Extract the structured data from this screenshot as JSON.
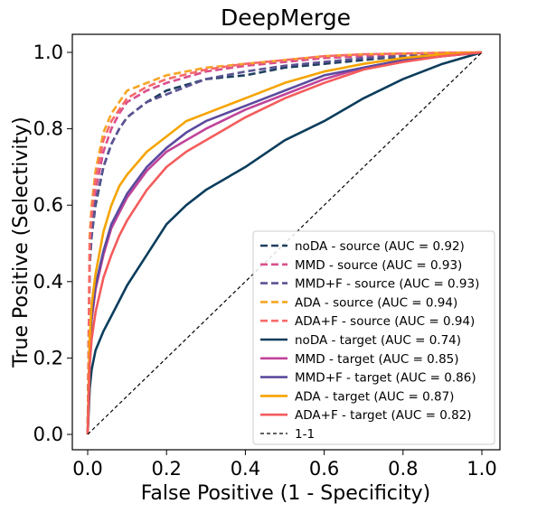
{
  "chart_data": {
    "type": "line",
    "title": "DeepMerge",
    "xlabel": "False Positive (1 - Specificity)",
    "ylabel": "True Positive (Selectivity)",
    "xlim": [
      0.0,
      1.0
    ],
    "ylim": [
      0.0,
      1.0
    ],
    "xticks": [
      "0.0",
      "0.2",
      "0.4",
      "0.6",
      "0.8",
      "1.0"
    ],
    "yticks": [
      "0.0",
      "0.2",
      "0.4",
      "0.6",
      "0.8",
      "1.0"
    ],
    "grid": false,
    "legend_position": "lower-right",
    "series": [
      {
        "name": "noDA - source (AUC = 0.92)",
        "color": "#1f3f5f",
        "dashed": true,
        "x": [
          0,
          0.005,
          0.01,
          0.02,
          0.04,
          0.06,
          0.08,
          0.1,
          0.15,
          0.2,
          0.3,
          0.4,
          0.5,
          0.6,
          0.7,
          0.8,
          0.9,
          1.0
        ],
        "y": [
          0,
          0.45,
          0.52,
          0.6,
          0.7,
          0.76,
          0.8,
          0.83,
          0.87,
          0.9,
          0.93,
          0.94,
          0.96,
          0.97,
          0.98,
          0.99,
          0.995,
          1.0
        ]
      },
      {
        "name": "MMD - source (AUC = 0.93)",
        "color": "#d94f8c",
        "dashed": true,
        "x": [
          0,
          0.005,
          0.01,
          0.02,
          0.04,
          0.06,
          0.08,
          0.1,
          0.15,
          0.2,
          0.3,
          0.4,
          0.5,
          0.6,
          0.7,
          0.8,
          0.9,
          1.0
        ],
        "y": [
          0,
          0.47,
          0.55,
          0.64,
          0.74,
          0.8,
          0.84,
          0.87,
          0.9,
          0.92,
          0.95,
          0.965,
          0.975,
          0.985,
          0.99,
          0.995,
          0.998,
          1.0
        ]
      },
      {
        "name": "MMD+F - source (AUC = 0.93)",
        "color": "#5c5393",
        "dashed": true,
        "x": [
          0,
          0.005,
          0.01,
          0.02,
          0.04,
          0.06,
          0.08,
          0.1,
          0.15,
          0.2,
          0.3,
          0.4,
          0.5,
          0.6,
          0.7,
          0.8,
          0.9,
          1.0
        ],
        "y": [
          0,
          0.44,
          0.52,
          0.61,
          0.7,
          0.76,
          0.8,
          0.83,
          0.87,
          0.89,
          0.93,
          0.95,
          0.965,
          0.975,
          0.985,
          0.99,
          0.995,
          1.0
        ]
      },
      {
        "name": "ADA - source (AUC = 0.94)",
        "color": "#f5a623",
        "dashed": true,
        "x": [
          0,
          0.005,
          0.01,
          0.02,
          0.04,
          0.06,
          0.08,
          0.1,
          0.15,
          0.2,
          0.3,
          0.4,
          0.5,
          0.6,
          0.7,
          0.8,
          0.9,
          1.0
        ],
        "y": [
          0,
          0.52,
          0.6,
          0.69,
          0.79,
          0.84,
          0.87,
          0.9,
          0.92,
          0.94,
          0.96,
          0.97,
          0.98,
          0.99,
          0.995,
          0.997,
          0.999,
          1.0
        ]
      },
      {
        "name": "ADA+F - source (AUC = 0.94)",
        "color": "#f76a6a",
        "dashed": true,
        "x": [
          0,
          0.005,
          0.01,
          0.02,
          0.04,
          0.06,
          0.08,
          0.1,
          0.15,
          0.2,
          0.3,
          0.4,
          0.5,
          0.6,
          0.7,
          0.8,
          0.9,
          1.0
        ],
        "y": [
          0,
          0.5,
          0.58,
          0.67,
          0.77,
          0.82,
          0.85,
          0.88,
          0.91,
          0.93,
          0.955,
          0.97,
          0.98,
          0.99,
          0.995,
          0.997,
          0.999,
          1.0
        ]
      },
      {
        "name": "noDA - target (AUC = 0.74)",
        "color": "#0b3d5c",
        "dashed": false,
        "x": [
          0,
          0.005,
          0.01,
          0.02,
          0.04,
          0.06,
          0.08,
          0.1,
          0.15,
          0.2,
          0.25,
          0.3,
          0.4,
          0.5,
          0.6,
          0.7,
          0.8,
          0.9,
          1.0
        ],
        "y": [
          0,
          0.12,
          0.17,
          0.22,
          0.27,
          0.31,
          0.35,
          0.39,
          0.47,
          0.55,
          0.6,
          0.64,
          0.7,
          0.77,
          0.82,
          0.88,
          0.93,
          0.97,
          1.0
        ]
      },
      {
        "name": "MMD - target (AUC = 0.85)",
        "color": "#c0449a",
        "dashed": false,
        "x": [
          0,
          0.005,
          0.01,
          0.02,
          0.04,
          0.06,
          0.08,
          0.1,
          0.15,
          0.2,
          0.25,
          0.3,
          0.4,
          0.5,
          0.6,
          0.7,
          0.8,
          0.9,
          1.0
        ],
        "y": [
          0,
          0.22,
          0.3,
          0.38,
          0.47,
          0.54,
          0.58,
          0.62,
          0.69,
          0.74,
          0.77,
          0.8,
          0.85,
          0.89,
          0.93,
          0.96,
          0.98,
          0.99,
          1.0
        ]
      },
      {
        "name": "MMD+F - target (AUC = 0.86)",
        "color": "#5b4a9e",
        "dashed": false,
        "x": [
          0,
          0.005,
          0.01,
          0.02,
          0.04,
          0.06,
          0.08,
          0.1,
          0.15,
          0.2,
          0.25,
          0.3,
          0.4,
          0.5,
          0.6,
          0.7,
          0.8,
          0.9,
          1.0
        ],
        "y": [
          0,
          0.23,
          0.31,
          0.39,
          0.48,
          0.55,
          0.59,
          0.63,
          0.7,
          0.75,
          0.79,
          0.82,
          0.86,
          0.9,
          0.94,
          0.96,
          0.98,
          0.99,
          1.0
        ]
      },
      {
        "name": "ADA - target (AUC = 0.87)",
        "color": "#f5a400",
        "dashed": false,
        "x": [
          0,
          0.005,
          0.01,
          0.02,
          0.04,
          0.06,
          0.08,
          0.1,
          0.15,
          0.2,
          0.25,
          0.3,
          0.4,
          0.5,
          0.6,
          0.7,
          0.8,
          0.9,
          1.0
        ],
        "y": [
          0,
          0.25,
          0.34,
          0.42,
          0.53,
          0.6,
          0.65,
          0.68,
          0.74,
          0.78,
          0.82,
          0.84,
          0.88,
          0.92,
          0.95,
          0.97,
          0.985,
          0.995,
          1.0
        ]
      },
      {
        "name": "ADA+F - target (AUC = 0.82)",
        "color": "#f45b5b",
        "dashed": false,
        "x": [
          0,
          0.005,
          0.01,
          0.02,
          0.04,
          0.06,
          0.08,
          0.1,
          0.15,
          0.2,
          0.25,
          0.3,
          0.4,
          0.5,
          0.6,
          0.7,
          0.8,
          0.9,
          1.0
        ],
        "y": [
          0,
          0.18,
          0.25,
          0.32,
          0.41,
          0.47,
          0.52,
          0.56,
          0.64,
          0.7,
          0.74,
          0.77,
          0.83,
          0.88,
          0.92,
          0.955,
          0.975,
          0.99,
          1.0
        ]
      },
      {
        "name": "1-1",
        "color": "#000000",
        "dashed": true,
        "thin": true,
        "x": [
          0,
          1.0
        ],
        "y": [
          0,
          1.0
        ]
      }
    ]
  }
}
